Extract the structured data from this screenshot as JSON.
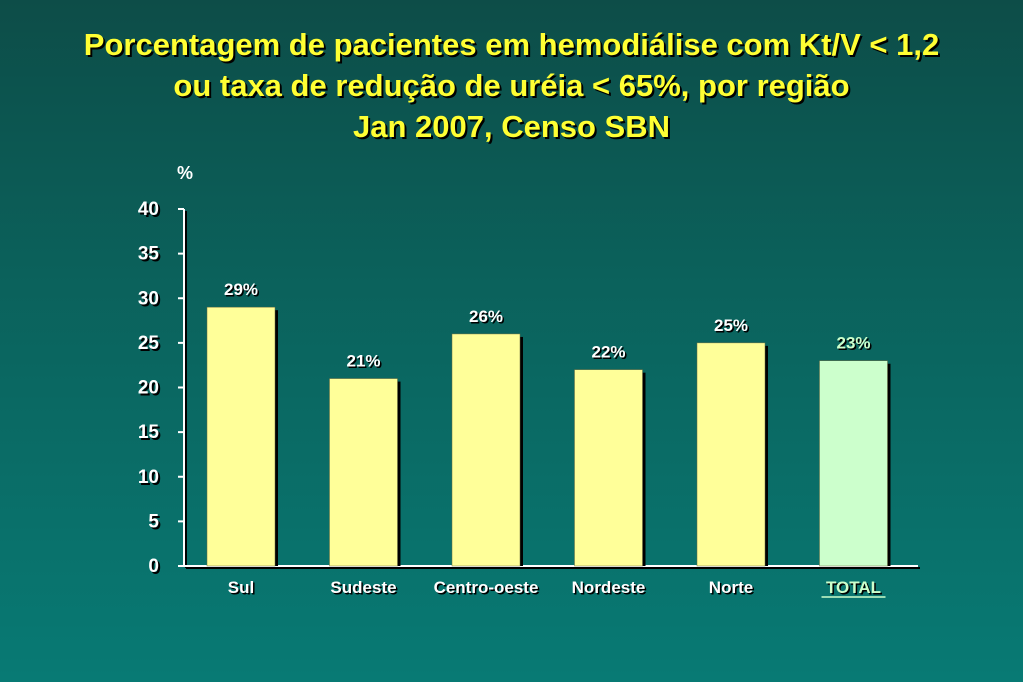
{
  "title_lines": [
    "Porcentagem de pacientes em hemodiálise com Kt/V < 1,2",
    "ou taxa de redução de uréia < 65%, por região",
    "Jan 2007, Censo SBN"
  ],
  "chart_data": {
    "type": "bar",
    "title": "Porcentagem de pacientes em hemodiálise com Kt/V < 1,2 ou taxa de redução de uréia < 65%, por região Jan 2007, Censo SBN",
    "ylabel": "%",
    "xlabel": "",
    "ylim": [
      0,
      40
    ],
    "yticks": [
      0,
      5,
      10,
      15,
      20,
      25,
      30,
      35,
      40
    ],
    "grid": false,
    "categories": [
      "Sul",
      "Sudeste",
      "Centro-oeste",
      "Nordeste",
      "Norte",
      "TOTAL"
    ],
    "values": [
      29,
      21,
      26,
      22,
      25,
      23
    ],
    "data_labels": [
      "29%",
      "21%",
      "26%",
      "22%",
      "25%",
      "23%"
    ],
    "bar_colors": [
      "#ffff99",
      "#ffff99",
      "#ffff99",
      "#ffff99",
      "#ffff99",
      "#ccffcc"
    ],
    "label_colors": [
      "#ffffff",
      "#ffffff",
      "#ffffff",
      "#ffffff",
      "#ffffff",
      "#ccffcc"
    ]
  },
  "colors": {
    "title": "#ffff33",
    "text": "#ffffff",
    "axis": "#ffffff",
    "shadow": "#000000"
  }
}
